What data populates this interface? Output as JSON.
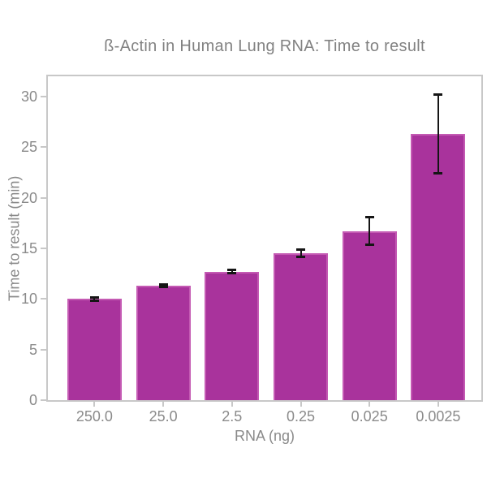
{
  "figure": {
    "background": "#ffffff"
  },
  "chart_data": {
    "type": "bar",
    "title": "ß-Actin in Human Lung RNA: Time to result",
    "xlabel": "RNA (ng)",
    "ylabel": "Time to result (min)",
    "categories": [
      "250.0",
      "25.0",
      "2.5",
      "0.25",
      "0.025",
      "0.0025"
    ],
    "values": [
      10.0,
      11.3,
      12.7,
      14.5,
      16.7,
      26.3
    ],
    "errors": [
      0.15,
      0.15,
      0.15,
      0.35,
      1.35,
      3.9
    ],
    "yticks": [
      0,
      5,
      10,
      15,
      20,
      25,
      30
    ],
    "ylim": [
      0,
      32
    ],
    "grid": false,
    "legend": false,
    "bar_color": "#a9339c",
    "bar_edge_color": "#c45ab3",
    "error_color": "#151515",
    "axis_color": "#c8c8c8",
    "text_color": "#8a8a8a"
  }
}
